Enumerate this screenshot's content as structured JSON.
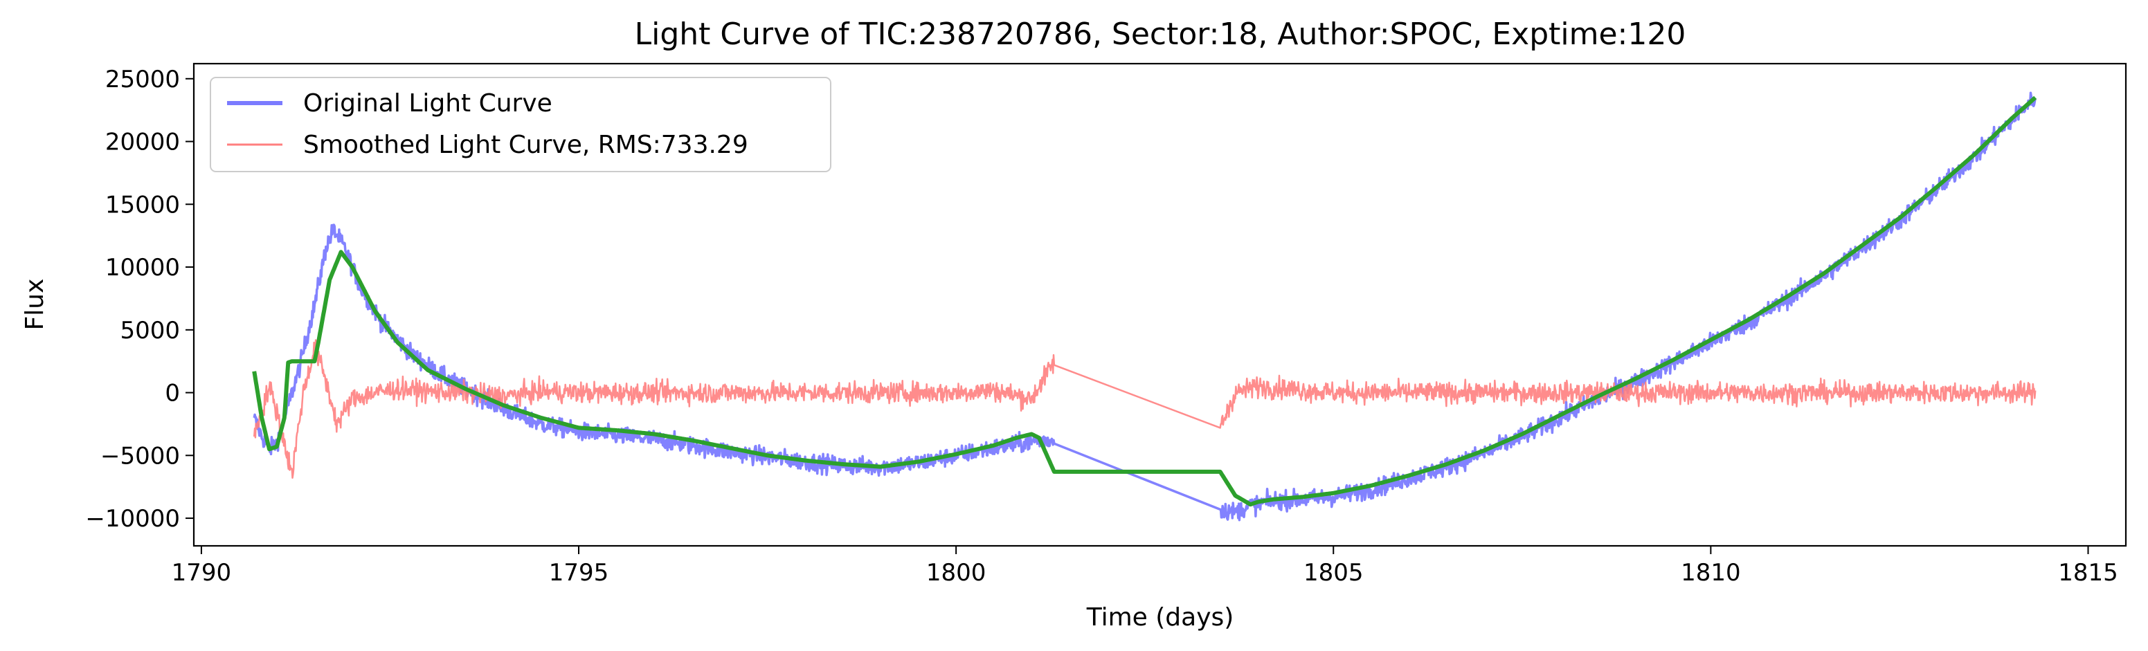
{
  "chart_data": {
    "type": "line",
    "title": "Light Curve of TIC:238720786, Sector:18, Author:SPOC, Exptime:120",
    "xlabel": "Time (days)",
    "ylabel": "Flux",
    "xlim": [
      1789.9,
      1815.5
    ],
    "ylim": [
      -12200,
      26200
    ],
    "xticks": [
      1790,
      1795,
      1800,
      1805,
      1810,
      1815
    ],
    "yticks": [
      -10000,
      -5000,
      0,
      5000,
      10000,
      15000,
      20000,
      25000
    ],
    "grid": false,
    "legend": {
      "placement": "top-left",
      "entries": [
        {
          "label": "Original Light Curve",
          "color": "#7b7bff"
        },
        {
          "label": "Smoothed Light Curve, RMS:733.29",
          "color": "#ff7f7f"
        }
      ]
    },
    "series": [
      {
        "name": "Original Light Curve",
        "color": "#7b7bff",
        "noise": 600,
        "x": [
          1790.7,
          1790.8,
          1790.9,
          1791.0,
          1791.1,
          1791.3,
          1791.5,
          1791.65,
          1791.75,
          1791.9,
          1792.1,
          1792.4,
          1792.8,
          1793.2,
          1793.6,
          1794.0,
          1794.5,
          1795.0,
          1795.5,
          1796.0,
          1796.5,
          1797.0,
          1797.5,
          1798.0,
          1798.5,
          1799.0,
          1799.5,
          1800.0,
          1800.5,
          1801.0,
          1801.3,
          1803.5,
          1803.7,
          1803.9,
          1804.2,
          1804.6,
          1805.0,
          1805.5,
          1806.0,
          1806.5,
          1807.0,
          1807.5,
          1808.0,
          1808.5,
          1809.0,
          1809.5,
          1810.0,
          1810.5,
          1811.0,
          1811.5,
          1812.0,
          1812.5,
          1813.0,
          1813.5,
          1814.0,
          1814.3
        ],
        "y": [
          -2000,
          -3500,
          -4500,
          -4000,
          -2000,
          2000,
          7000,
          11500,
          13000,
          11500,
          8500,
          5500,
          3000,
          1300,
          0,
          -1300,
          -2500,
          -3100,
          -3400,
          -3700,
          -4200,
          -4700,
          -5100,
          -5500,
          -5800,
          -5900,
          -5600,
          -5000,
          -4400,
          -3900,
          -3800,
          -9300,
          -9500,
          -9000,
          -8600,
          -8500,
          -8300,
          -7700,
          -6800,
          -5900,
          -4800,
          -3500,
          -2000,
          -500,
          900,
          2400,
          4000,
          5600,
          7400,
          9300,
          11500,
          13700,
          16200,
          18800,
          21800,
          23500
        ]
      },
      {
        "name": "Smoothed Light Curve, RMS:733.29",
        "color": "#ff7f7f",
        "noise": 700,
        "x": [
          1790.7,
          1790.8,
          1790.9,
          1791.0,
          1791.1,
          1791.2,
          1791.35,
          1791.5,
          1791.6,
          1791.8,
          1792.0,
          1792.3,
          1792.6,
          1793.0,
          1793.5,
          1794.0,
          1794.5,
          1795.0,
          1796.0,
          1797.0,
          1798.0,
          1799.0,
          1800.0,
          1800.5,
          1801.0,
          1801.3,
          1803.5,
          1803.7,
          1804.0,
          1805.0,
          1806.0,
          1807.0,
          1808.0,
          1809.0,
          1810.0,
          1811.0,
          1812.0,
          1813.0,
          1814.0,
          1814.3
        ],
        "y": [
          -3500,
          -1500,
          500,
          -1500,
          -4000,
          -6500,
          0,
          3500,
          2000,
          -2500,
          -500,
          0,
          300,
          100,
          0,
          -300,
          100,
          0,
          0,
          0,
          0,
          0,
          0,
          200,
          -500,
          2500,
          -2800,
          0,
          500,
          0,
          0,
          0,
          0,
          0,
          0,
          0,
          0,
          0,
          0,
          0
        ]
      },
      {
        "name": "",
        "color": "#2ca02c",
        "noise": 0,
        "x": [
          1790.7,
          1790.8,
          1790.9,
          1791.0,
          1791.1,
          1791.15,
          1791.2,
          1791.5,
          1791.55,
          1791.7,
          1791.85,
          1792.0,
          1792.3,
          1792.6,
          1793.0,
          1793.5,
          1794.0,
          1794.5,
          1795.0,
          1795.5,
          1796.0,
          1796.5,
          1797.0,
          1797.5,
          1798.0,
          1798.5,
          1799.0,
          1799.5,
          1800.0,
          1800.5,
          1800.8,
          1801.0,
          1801.1,
          1801.3,
          1803.5,
          1803.7,
          1803.9,
          1804.0,
          1804.2,
          1804.6,
          1805.0,
          1805.5,
          1806.0,
          1806.5,
          1807.0,
          1807.5,
          1808.0,
          1808.5,
          1809.0,
          1809.5,
          1810.0,
          1810.5,
          1811.0,
          1811.5,
          1812.0,
          1812.5,
          1813.0,
          1813.5,
          1814.0,
          1814.3
        ],
        "y": [
          1700,
          -2000,
          -4500,
          -4300,
          -2000,
          2400,
          2500,
          2500,
          4000,
          9000,
          11200,
          10000,
          6500,
          4000,
          1800,
          300,
          -1000,
          -2000,
          -2800,
          -3000,
          -3300,
          -3800,
          -4400,
          -5000,
          -5400,
          -5700,
          -5900,
          -5500,
          -4900,
          -4200,
          -3600,
          -3300,
          -3600,
          -6300,
          -6300,
          -8200,
          -8900,
          -8700,
          -8500,
          -8300,
          -8000,
          -7400,
          -6600,
          -5700,
          -4600,
          -3300,
          -1800,
          -300,
          1100,
          2600,
          4200,
          5800,
          7600,
          9500,
          11700,
          13900,
          16400,
          19000,
          21900,
          23500
        ]
      }
    ]
  }
}
